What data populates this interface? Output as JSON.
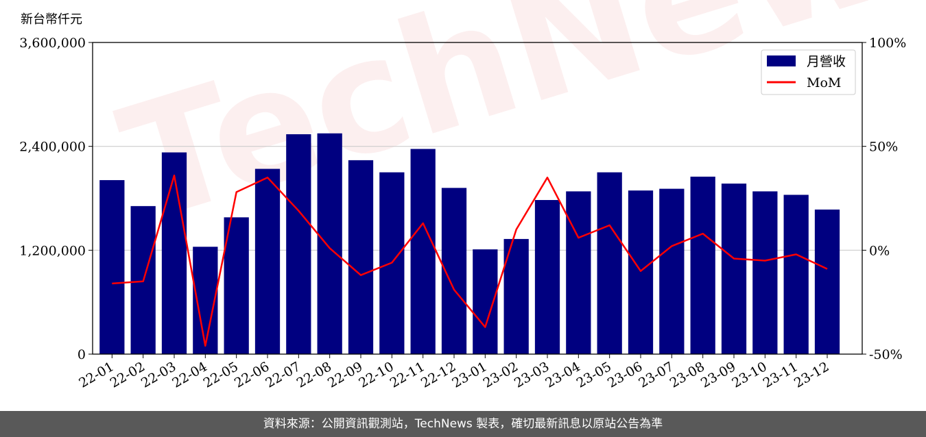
{
  "unit_label": "新台幣仟元",
  "footer_text": "資料來源：公開資訊觀測站，TechNews 製表，確切最新訊息以原站公告為準",
  "watermark_text": "TechNews",
  "colors": {
    "bar": "#000080",
    "line": "#ff0000",
    "grid": "#cccccc"
  },
  "chart_data": {
    "type": "bar+line",
    "categories": [
      "22-01",
      "22-02",
      "22-03",
      "22-04",
      "22-05",
      "22-06",
      "22-07",
      "22-08",
      "22-09",
      "22-10",
      "22-11",
      "22-12",
      "23-01",
      "23-02",
      "23-03",
      "23-04",
      "23-05",
      "23-06",
      "23-07",
      "23-08",
      "23-09",
      "23-10",
      "23-11",
      "23-12"
    ],
    "series": [
      {
        "name": "月營收",
        "type": "bar",
        "axis": "left",
        "values": [
          2010000,
          1710000,
          2330000,
          1240000,
          1580000,
          2140000,
          2540000,
          2550000,
          2240000,
          2100000,
          2370000,
          1920000,
          1210000,
          1330000,
          1780000,
          1880000,
          2100000,
          1890000,
          1910000,
          2050000,
          1970000,
          1880000,
          1840000,
          1670000
        ]
      },
      {
        "name": "MoM",
        "type": "line",
        "axis": "right",
        "values": [
          -16,
          -15,
          36,
          -46,
          28,
          35,
          19,
          1,
          -12,
          -6,
          13,
          -19,
          -37,
          10,
          35,
          6,
          12,
          -10,
          2,
          8,
          -4,
          -5,
          -2,
          -9
        ]
      }
    ],
    "y_left": {
      "min": 0,
      "max": 3600000,
      "ticks": [
        0,
        1200000,
        2400000,
        3600000
      ],
      "tick_labels": [
        "0",
        "1,200,000",
        "2,400,000",
        "3,600,000"
      ]
    },
    "y_right": {
      "min": -50,
      "max": 100,
      "ticks": [
        -50,
        0,
        50,
        100
      ],
      "tick_labels": [
        "-50%",
        "0%",
        "50%",
        "100%"
      ]
    },
    "grid": true,
    "legend_position": "top-right"
  }
}
